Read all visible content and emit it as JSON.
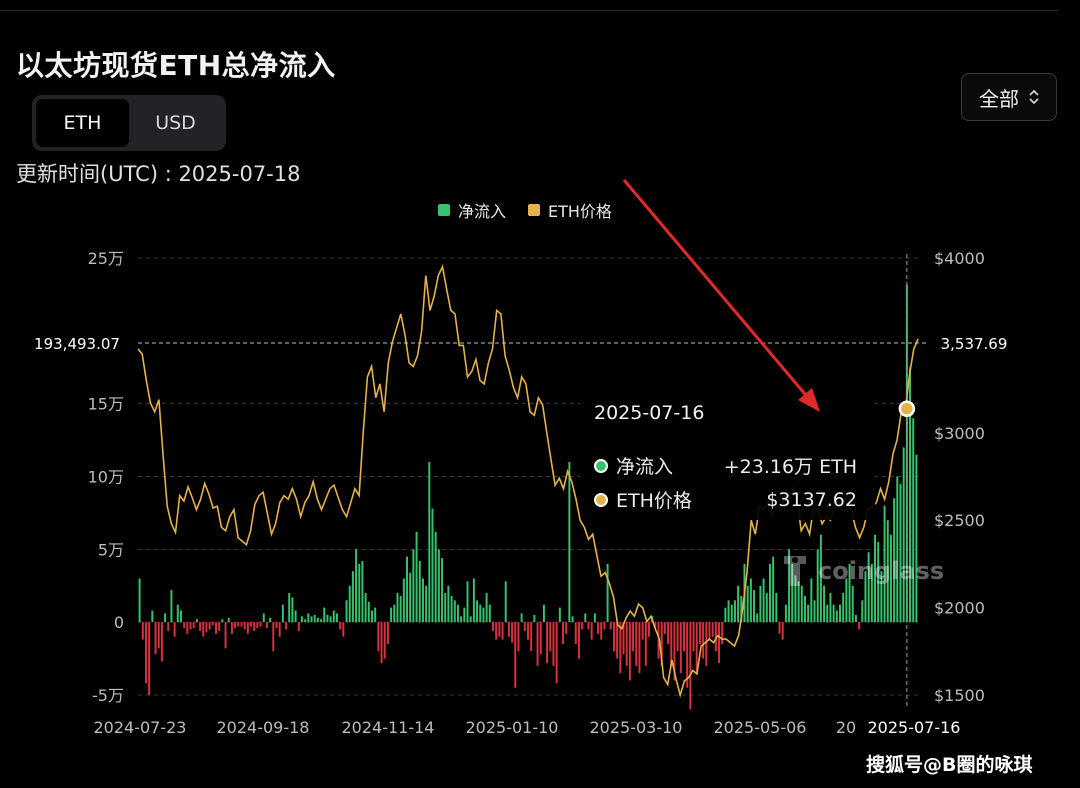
{
  "header": {
    "title": "以太坊现货ETH总净流入",
    "updated_text": "更新时间(UTC) : 2025-07-18",
    "range_select": "全部",
    "tabs": [
      {
        "label": "ETH",
        "active": true
      },
      {
        "label": "USD",
        "active": false
      }
    ]
  },
  "tooltip": {
    "date": "2025-07-16",
    "rows": [
      {
        "label": "净流入",
        "value": "+23.16万 ETH",
        "color": "#38c26e"
      },
      {
        "label": "ETH价格",
        "value": "$3137.62",
        "color": "#e3b34a"
      }
    ]
  },
  "watermark": {
    "text": "coinglass"
  },
  "footer": {
    "credit": "搜狐号@B圈的咏琪"
  },
  "colors": {
    "inflow": "#38c26e",
    "outflow": "#d9323f",
    "price": "#e3b34a",
    "grid": "#3a3a3e",
    "annotation_arrow": "#e02a2a"
  },
  "chart_data": {
    "type": "bar",
    "legend": [
      {
        "name": "净流入",
        "color": "#38c26e"
      },
      {
        "name": "ETH价格",
        "color": "#e3b34a"
      }
    ],
    "legend_position": "top-center",
    "grid": true,
    "x_tick_labels": [
      "2024-07-23",
      "2024-09-18",
      "2024-11-14",
      "2025-01-10",
      "2025-03-10",
      "2025-05-06",
      "20",
      "2025-07-16"
    ],
    "y_left": {
      "ticks": [
        "25万",
        "15万",
        "10万",
        "5万",
        "0",
        "-5万"
      ],
      "ylim": [
        -50000,
        250000
      ]
    },
    "y_right": {
      "ticks": [
        "$4000",
        "$3000",
        "$2500",
        "$2000",
        "$1500"
      ],
      "ylim": [
        1500,
        4000
      ]
    },
    "crosshair": {
      "left_value": "193,493.07",
      "right_value": "3,537.69",
      "x_label": "2025-07-16"
    },
    "series": [
      {
        "name": "净流入",
        "type": "bar",
        "unit": "ETH",
        "values": [
          30000,
          -12000,
          -42000,
          -50000,
          8000,
          -22000,
          -18000,
          -27000,
          6000,
          -6000,
          22000,
          -10000,
          12000,
          8000,
          -4000,
          -8000,
          -5000,
          -4000,
          2000,
          -6000,
          -10000,
          -7000,
          -5000,
          -2000,
          -8000,
          -6000,
          2000,
          -18000,
          3000,
          -8000,
          -4000,
          -3000,
          -3000,
          -5000,
          -8000,
          -3000,
          -6000,
          -4000,
          -3000,
          6000,
          -4000,
          3000,
          -20000,
          -4000,
          -10000,
          12000,
          -5000,
          20000,
          17000,
          8000,
          -6000,
          4000,
          2000,
          6000,
          4000,
          5000,
          3000,
          2000,
          10000,
          5000,
          4000,
          8000,
          6000,
          -5000,
          -10000,
          15000,
          25000,
          35000,
          50000,
          40000,
          42000,
          20000,
          14000,
          8000,
          10000,
          -20000,
          -28000,
          -25000,
          -15000,
          10000,
          12000,
          20000,
          18000,
          30000,
          45000,
          34000,
          50000,
          62000,
          42000,
          30000,
          25000,
          110000,
          78000,
          62000,
          50000,
          44000,
          20000,
          25000,
          18000,
          15000,
          12000,
          4000,
          10000,
          28000,
          4000,
          30000,
          15000,
          12000,
          10000,
          20000,
          12000,
          -6000,
          -12000,
          -10000,
          -12000,
          28000,
          -10000,
          -14000,
          -45000,
          -20000,
          6000,
          -6000,
          -12000,
          -20000,
          5000,
          -30000,
          -22000,
          12000,
          -28000,
          -20000,
          -30000,
          -42000,
          10000,
          -15000,
          -8000,
          110000,
          4000,
          -15000,
          -25000,
          -5000,
          6000,
          -5000,
          -12000,
          6000,
          -8000,
          -12000,
          -5000,
          40000,
          -5000,
          -20000,
          -25000,
          -35000,
          -22000,
          -30000,
          -40000,
          -20000,
          -30000,
          -35000,
          -12000,
          -30000,
          -10000,
          4000,
          -4000,
          -25000,
          -30000,
          -8000,
          -15000,
          -30000,
          -40000,
          -20000,
          -35000,
          -20000,
          -45000,
          -60000,
          -20000,
          -35000,
          -15000,
          -25000,
          -30000,
          -12000,
          -10000,
          -20000,
          -28000,
          -15000,
          10000,
          15000,
          12000,
          15000,
          25000,
          18000,
          40000,
          25000,
          30000,
          22000,
          6000,
          25000,
          30000,
          20000,
          40000,
          45000,
          20000,
          -8000,
          -12000,
          12000,
          50000,
          40000,
          32000,
          28000,
          25000,
          18000,
          12000,
          30000,
          15000,
          50000,
          60000,
          25000,
          12000,
          20000,
          12000,
          8000,
          12000,
          20000,
          30000,
          40000,
          25000,
          5000,
          -5000,
          15000,
          35000,
          48000,
          40000,
          60000,
          55000,
          35000,
          80000,
          70000,
          60000,
          85000,
          100000,
          95000,
          120000,
          231600,
          175000,
          140000,
          115000
        ]
      },
      {
        "name": "ETH价格",
        "type": "line",
        "unit": "USD",
        "values": [
          3480,
          3450,
          3300,
          3170,
          3120,
          3190,
          2880,
          2580,
          2480,
          2430,
          2640,
          2610,
          2690,
          2630,
          2560,
          2620,
          2710,
          2650,
          2570,
          2580,
          2460,
          2440,
          2520,
          2560,
          2400,
          2380,
          2360,
          2440,
          2590,
          2640,
          2660,
          2540,
          2420,
          2480,
          2600,
          2640,
          2620,
          2680,
          2620,
          2520,
          2600,
          2640,
          2720,
          2620,
          2560,
          2620,
          2680,
          2700,
          2630,
          2560,
          2520,
          2600,
          2680,
          2640,
          3000,
          3320,
          3380,
          3200,
          3280,
          3120,
          3400,
          3520,
          3600,
          3680,
          3560,
          3400,
          3380,
          3440,
          3580,
          3900,
          3700,
          3780,
          3900,
          3950,
          3820,
          3700,
          3680,
          3500,
          3500,
          3320,
          3350,
          3420,
          3300,
          3280,
          3400,
          3480,
          3700,
          3680,
          3440,
          3360,
          3260,
          3200,
          3320,
          3280,
          3120,
          3100,
          3200,
          3160,
          3000,
          2850,
          2700,
          2740,
          2680,
          2780,
          2720,
          2620,
          2500,
          2460,
          2390,
          2420,
          2300,
          2180,
          2200,
          2140,
          2060,
          1900,
          1880,
          1940,
          1980,
          1950,
          2020,
          2000,
          1920,
          1950,
          1880,
          1820,
          1600,
          1560,
          1700,
          1590,
          1500,
          1580,
          1600,
          1640,
          1620,
          1780,
          1800,
          1820,
          1800,
          1840,
          1820,
          1820,
          1800,
          1780,
          1840,
          2000,
          2200,
          2500,
          2420,
          2580,
          2560,
          2600,
          2520,
          2580,
          2560,
          2640,
          2600,
          2680,
          2620,
          2440,
          2480,
          2420,
          2580,
          2560,
          2480,
          2520,
          2500,
          2580,
          2580,
          2620,
          2600,
          2560,
          2460,
          2400,
          2460,
          2560,
          2580,
          2600,
          2680,
          2620,
          2720,
          2880,
          2960,
          3120,
          3137,
          3340,
          3480,
          3537
        ]
      }
    ]
  }
}
